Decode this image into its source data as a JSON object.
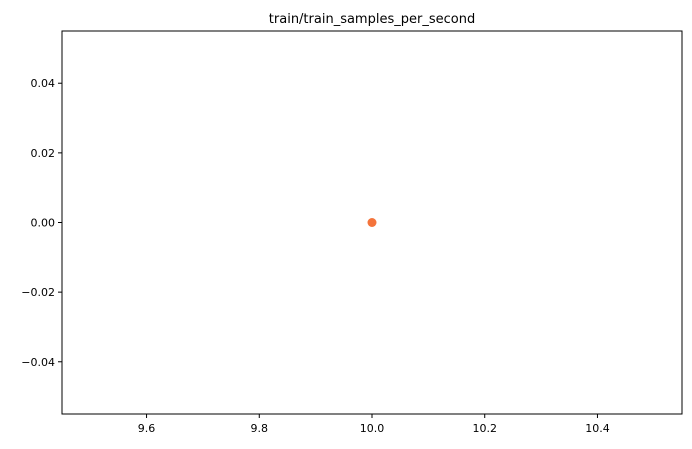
{
  "chart_data": {
    "type": "scatter",
    "title": "train/train_samples_per_second",
    "xlabel": "",
    "ylabel": "",
    "xlim": [
      9.45,
      10.55
    ],
    "ylim": [
      -0.055,
      0.055
    ],
    "x_ticks": [
      9.6,
      9.8,
      10.0,
      10.2,
      10.4
    ],
    "x_tick_labels": [
      "9.6",
      "9.8",
      "10.0",
      "10.2",
      "10.4"
    ],
    "y_ticks": [
      0.04,
      0.02,
      0.0,
      -0.02,
      -0.04
    ],
    "y_tick_labels": [
      "0.04",
      "0.02",
      "0.00",
      "−0.02",
      "−0.04"
    ],
    "grid": false,
    "legend": "none",
    "points": [
      {
        "x": 10.0,
        "y": 0.0
      }
    ],
    "marker_color": "#f4743b"
  }
}
